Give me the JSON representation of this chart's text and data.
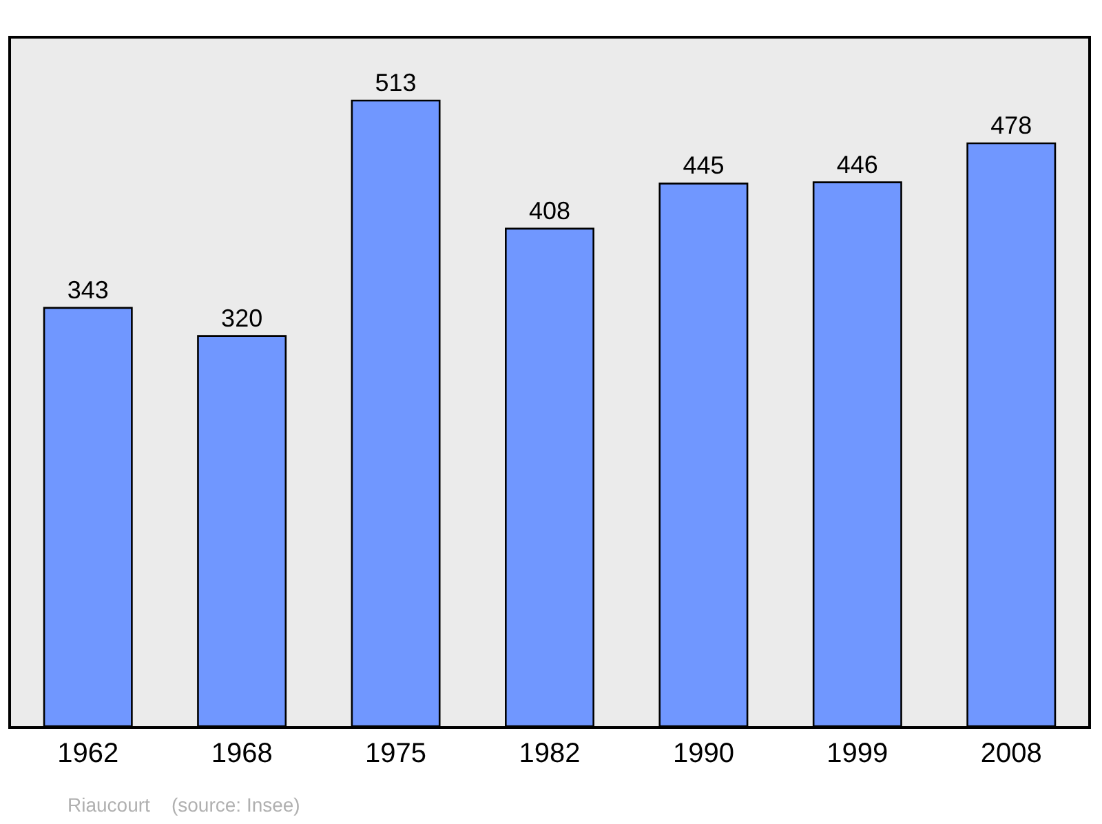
{
  "chart_data": {
    "type": "bar",
    "categories": [
      "1962",
      "1968",
      "1975",
      "1982",
      "1990",
      "1999",
      "2008"
    ],
    "values": [
      343,
      320,
      513,
      408,
      445,
      446,
      478
    ],
    "color": "#7097ff",
    "data_labels": true,
    "tick_labels": "x",
    "annotations": [
      "Riaucourt    (source: Insee)"
    ]
  }
}
